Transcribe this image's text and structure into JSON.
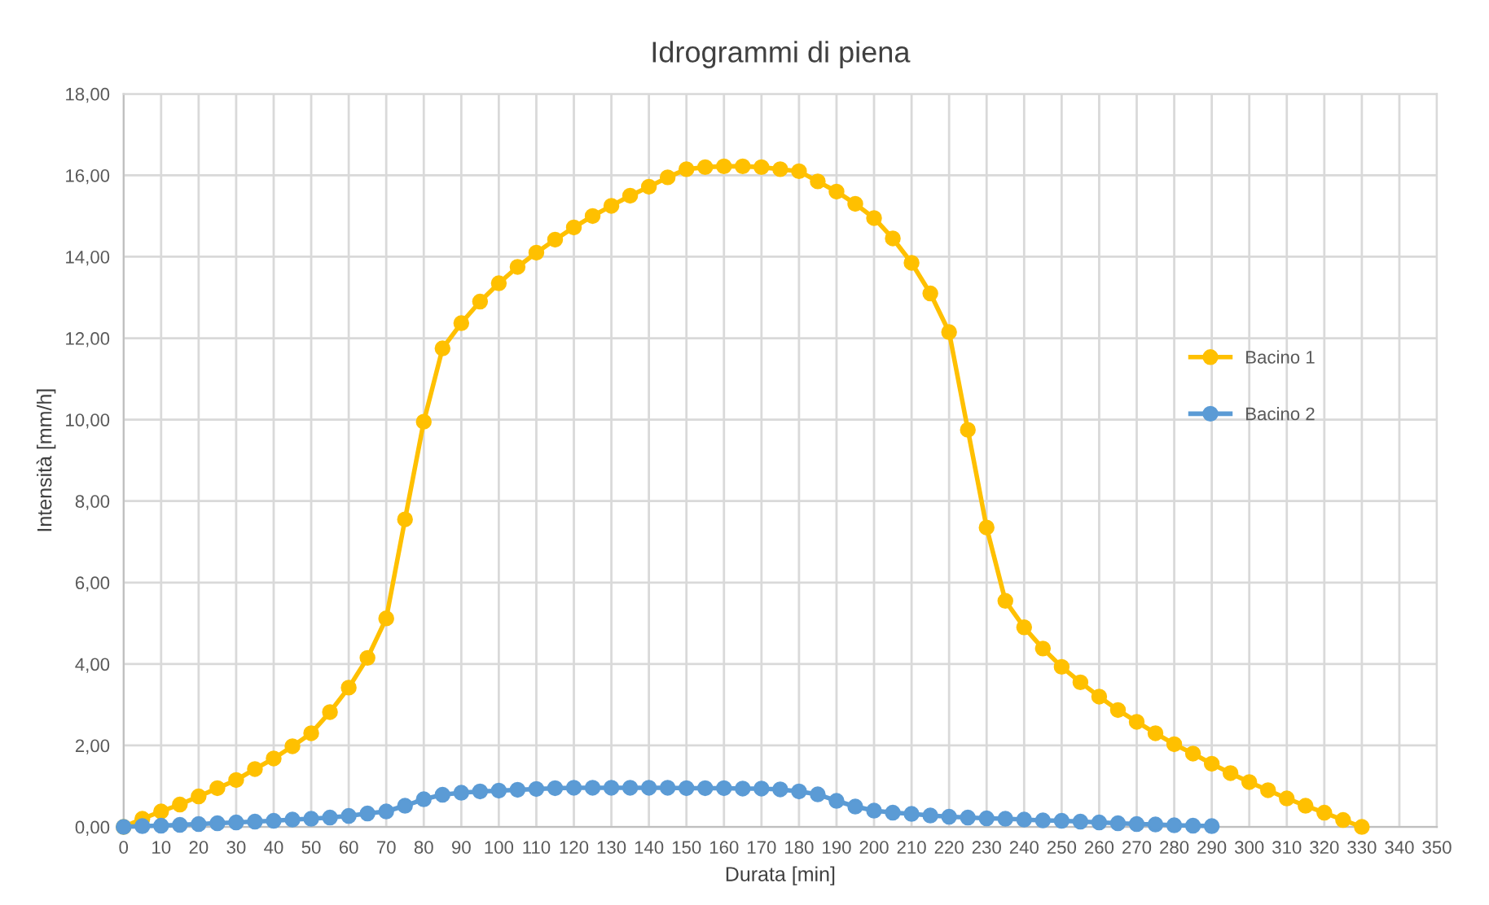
{
  "chart_data": {
    "type": "line",
    "title": "Idrogrammi di piena",
    "xlabel": "Durata [min]",
    "ylabel": "Intensità [mm/h]",
    "xlim": [
      0,
      350
    ],
    "xticks": [
      0,
      10,
      20,
      30,
      40,
      50,
      60,
      70,
      80,
      90,
      100,
      110,
      120,
      130,
      140,
      150,
      160,
      170,
      180,
      190,
      200,
      210,
      220,
      230,
      240,
      250,
      260,
      270,
      280,
      290,
      300,
      310,
      320,
      330,
      340,
      350
    ],
    "ylim": [
      0,
      18
    ],
    "yticks": [
      {
        "value": 0,
        "label": "0,00"
      },
      {
        "value": 2,
        "label": "2,00"
      },
      {
        "value": 4,
        "label": "4,00"
      },
      {
        "value": 6,
        "label": "6,00"
      },
      {
        "value": 8,
        "label": "8,00"
      },
      {
        "value": 10,
        "label": "10,00"
      },
      {
        "value": 12,
        "label": "12,00"
      },
      {
        "value": 14,
        "label": "14,00"
      },
      {
        "value": 16,
        "label": "16,00"
      },
      {
        "value": 18,
        "label": "18,00"
      }
    ],
    "grid": true,
    "legend": "right",
    "marker": "circle",
    "line_style": "solid",
    "series": [
      {
        "name": "Bacino 1",
        "color": "#ffc000",
        "x": [
          0,
          5,
          10,
          15,
          20,
          25,
          30,
          35,
          40,
          45,
          50,
          55,
          60,
          65,
          70,
          75,
          80,
          85,
          90,
          95,
          100,
          105,
          110,
          115,
          120,
          125,
          130,
          135,
          140,
          145,
          150,
          155,
          160,
          165,
          170,
          175,
          180,
          185,
          190,
          195,
          200,
          205,
          210,
          215,
          220,
          225,
          230,
          235,
          240,
          245,
          250,
          255,
          260,
          265,
          270,
          275,
          280,
          285,
          290,
          295,
          300,
          305,
          310,
          315,
          320,
          325,
          330
        ],
        "values": [
          0,
          0.2,
          0.38,
          0.55,
          0.75,
          0.95,
          1.15,
          1.42,
          1.68,
          1.98,
          2.3,
          2.82,
          3.42,
          4.15,
          5.12,
          7.55,
          9.95,
          11.75,
          12.37,
          12.9,
          13.35,
          13.75,
          14.1,
          14.42,
          14.72,
          15.0,
          15.25,
          15.5,
          15.72,
          15.95,
          16.15,
          16.2,
          16.22,
          16.22,
          16.2,
          16.15,
          16.1,
          15.85,
          15.6,
          15.3,
          14.95,
          14.45,
          13.85,
          13.1,
          12.15,
          9.75,
          7.35,
          5.55,
          4.9,
          4.38,
          3.93,
          3.55,
          3.2,
          2.87,
          2.58,
          2.3,
          2.03,
          1.8,
          1.55,
          1.32,
          1.1,
          0.9,
          0.7,
          0.52,
          0.35,
          0.17,
          0
        ]
      },
      {
        "name": "Bacino 2",
        "color": "#5b9bd5",
        "x": [
          0,
          5,
          10,
          15,
          20,
          25,
          30,
          35,
          40,
          45,
          50,
          55,
          60,
          65,
          70,
          75,
          80,
          85,
          90,
          95,
          100,
          105,
          110,
          115,
          120,
          125,
          130,
          135,
          140,
          145,
          150,
          155,
          160,
          165,
          170,
          175,
          180,
          185,
          190,
          195,
          200,
          205,
          210,
          215,
          220,
          225,
          230,
          235,
          240,
          245,
          250,
          255,
          260,
          265,
          270,
          275,
          280,
          285,
          290
        ],
        "values": [
          0,
          0.02,
          0.03,
          0.05,
          0.07,
          0.09,
          0.11,
          0.13,
          0.15,
          0.18,
          0.2,
          0.23,
          0.27,
          0.33,
          0.38,
          0.52,
          0.68,
          0.79,
          0.84,
          0.87,
          0.89,
          0.91,
          0.93,
          0.95,
          0.96,
          0.96,
          0.96,
          0.96,
          0.96,
          0.96,
          0.95,
          0.95,
          0.95,
          0.94,
          0.94,
          0.92,
          0.87,
          0.8,
          0.64,
          0.5,
          0.4,
          0.35,
          0.32,
          0.28,
          0.25,
          0.23,
          0.21,
          0.2,
          0.18,
          0.16,
          0.15,
          0.13,
          0.11,
          0.09,
          0.07,
          0.06,
          0.04,
          0.03,
          0.02
        ]
      }
    ]
  }
}
